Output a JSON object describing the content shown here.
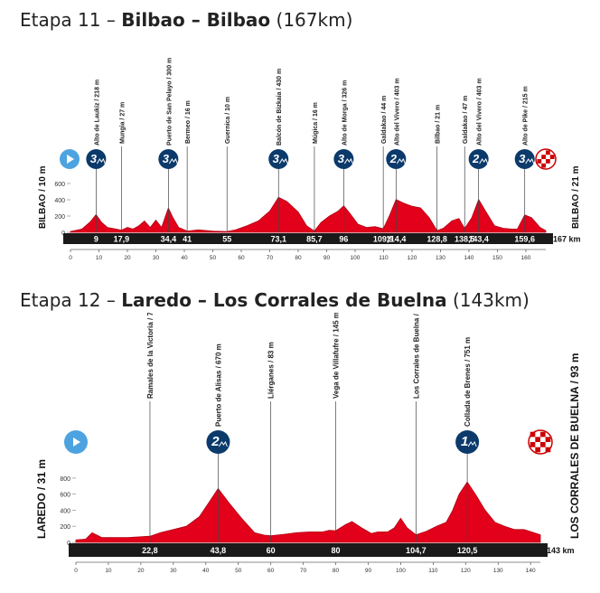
{
  "colors": {
    "profile": "#e2001a",
    "profile_line": "#b30015",
    "bar": "#1a1a1a",
    "marker": "#0b3a6b",
    "start": "#4da3e0"
  },
  "chart_data": [
    {
      "type": "area",
      "title": {
        "prefix": "Etapa 11 – ",
        "route": "Bilbao – Bilbao",
        "distance": "(167km)"
      },
      "start_label": "BILBAO / 10 m",
      "finish_label": "BILBAO / 21 m",
      "total_label": "167 km",
      "xlim": [
        0,
        167
      ],
      "ylim": [
        0,
        800
      ],
      "y_ticks": [
        0,
        200,
        400,
        600
      ],
      "x_ticks": [
        0,
        10,
        20,
        30,
        40,
        50,
        60,
        70,
        80,
        90,
        100,
        110,
        120,
        130,
        140,
        150,
        160
      ],
      "km_marks": [
        {
          "x": 9,
          "label": "9"
        },
        {
          "x": 17.9,
          "label": "17,9"
        },
        {
          "x": 34.4,
          "label": "34,4"
        },
        {
          "x": 41,
          "label": "41"
        },
        {
          "x": 55,
          "label": "55"
        },
        {
          "x": 73.1,
          "label": "73,1"
        },
        {
          "x": 85.7,
          "label": "85,7"
        },
        {
          "x": 96,
          "label": "96"
        },
        {
          "x": 109.9,
          "label": "109,9"
        },
        {
          "x": 114.4,
          "label": "114,4"
        },
        {
          "x": 128.8,
          "label": "128,8"
        },
        {
          "x": 138.5,
          "label": "138,5"
        },
        {
          "x": 143.4,
          "label": "143,4"
        },
        {
          "x": 159.6,
          "label": "159,6"
        }
      ],
      "waypoints": [
        {
          "x": 9,
          "label": "Alto de Laukiz / 218 m",
          "cat": "3"
        },
        {
          "x": 17.9,
          "label": "Mungia / 27 m",
          "cat": ""
        },
        {
          "x": 34.4,
          "label": "Puerto de San Pelayo / 300 m",
          "cat": "3"
        },
        {
          "x": 41,
          "label": "Bermeo / 16 m",
          "cat": ""
        },
        {
          "x": 55,
          "label": "Guernica / 10 m",
          "cat": ""
        },
        {
          "x": 73.1,
          "label": "Balcón de Bizkaia / 430 m",
          "cat": "3"
        },
        {
          "x": 85.7,
          "label": "Múgica / 16 m",
          "cat": ""
        },
        {
          "x": 96,
          "label": "Alto de Morga / 326 m",
          "cat": "3"
        },
        {
          "x": 109.9,
          "label": "Galdakao / 44 m",
          "cat": ""
        },
        {
          "x": 114.4,
          "label": "Alto del Vivero / 403 m",
          "cat": "2"
        },
        {
          "x": 128.8,
          "label": "Bilbao / 21 m",
          "cat": ""
        },
        {
          "x": 138.5,
          "label": "Galdakao / 47 m",
          "cat": ""
        },
        {
          "x": 143.4,
          "label": "Alto del Vivero / 403 m",
          "cat": "2"
        },
        {
          "x": 159.6,
          "label": "Alto de Pike / 215 m",
          "cat": "3"
        }
      ],
      "x": [
        0,
        4,
        7,
        9,
        11,
        13,
        16,
        17.9,
        20,
        22,
        24,
        26,
        28,
        30,
        32,
        34.4,
        36,
        38,
        41,
        45,
        50,
        55,
        58,
        62,
        66,
        70,
        73.1,
        76,
        80,
        83,
        85.7,
        88,
        91,
        94,
        96,
        98,
        101,
        104,
        107,
        109.9,
        112,
        114.4,
        117,
        120,
        123,
        126,
        128.8,
        131,
        134,
        136.5,
        138.5,
        141,
        143.4,
        146,
        149,
        152,
        155,
        157,
        159.6,
        162,
        165,
        167
      ],
      "y": [
        10,
        40,
        130,
        218,
        120,
        60,
        40,
        27,
        60,
        40,
        80,
        140,
        60,
        150,
        60,
        300,
        180,
        60,
        16,
        30,
        15,
        10,
        30,
        80,
        140,
        260,
        430,
        380,
        250,
        80,
        16,
        120,
        200,
        260,
        326,
        240,
        100,
        60,
        70,
        44,
        200,
        403,
        360,
        320,
        300,
        180,
        21,
        50,
        140,
        170,
        47,
        180,
        403,
        250,
        80,
        50,
        40,
        40,
        215,
        180,
        60,
        21
      ]
    },
    {
      "type": "area",
      "title": {
        "prefix": "Etapa 12 – ",
        "route": "Laredo – Los Corrales de Buelna",
        "distance": "(143km)"
      },
      "start_label": "LAREDO / 31 m",
      "finish_label": "LOS CORRALES DE BUELNA / 93 m",
      "total_label": "143 km",
      "xlim": [
        0,
        143
      ],
      "ylim": [
        0,
        900
      ],
      "y_ticks": [
        0,
        200,
        400,
        600,
        800
      ],
      "x_ticks": [
        0,
        10,
        20,
        30,
        40,
        50,
        60,
        70,
        80,
        90,
        100,
        110,
        120,
        130,
        140
      ],
      "km_marks": [
        {
          "x": 22.8,
          "label": "22,8"
        },
        {
          "x": 43.8,
          "label": "43,8"
        },
        {
          "x": 60,
          "label": "60"
        },
        {
          "x": 80,
          "label": "80"
        },
        {
          "x": 104.7,
          "label": "104,7"
        },
        {
          "x": 120.5,
          "label": "120,5"
        }
      ],
      "waypoints": [
        {
          "x": 22.8,
          "label": "Ramales de la Victoria / 76 m",
          "cat": ""
        },
        {
          "x": 43.8,
          "label": "Puerto de Alisas / 670 m",
          "cat": "2"
        },
        {
          "x": 60,
          "label": "Llérganes / 83 m",
          "cat": ""
        },
        {
          "x": 80,
          "label": "Vega de Villafufre / 145 m",
          "cat": ""
        },
        {
          "x": 104.7,
          "label": "Los Corrales de Buelna / 94 m",
          "cat": ""
        },
        {
          "x": 120.5,
          "label": "Collada de Brenes / 751 m",
          "cat": "1"
        }
      ],
      "x": [
        0,
        3,
        5,
        8,
        12,
        16,
        20,
        22.8,
        26,
        30,
        34,
        38,
        41,
        43.8,
        47,
        51,
        55,
        58,
        60,
        64,
        68,
        72,
        76,
        78,
        80,
        83,
        85,
        88,
        91,
        93,
        96,
        98,
        100,
        102,
        104.7,
        108,
        111,
        114,
        116,
        118,
        120.5,
        123,
        126,
        129,
        132,
        135,
        138,
        141,
        143
      ],
      "y": [
        31,
        40,
        120,
        60,
        60,
        60,
        70,
        76,
        120,
        160,
        200,
        320,
        500,
        670,
        500,
        300,
        120,
        90,
        83,
        100,
        120,
        130,
        130,
        150,
        145,
        220,
        260,
        180,
        110,
        130,
        130,
        180,
        300,
        180,
        94,
        140,
        200,
        250,
        400,
        600,
        751,
        600,
        400,
        250,
        200,
        160,
        160,
        120,
        93
      ]
    }
  ]
}
